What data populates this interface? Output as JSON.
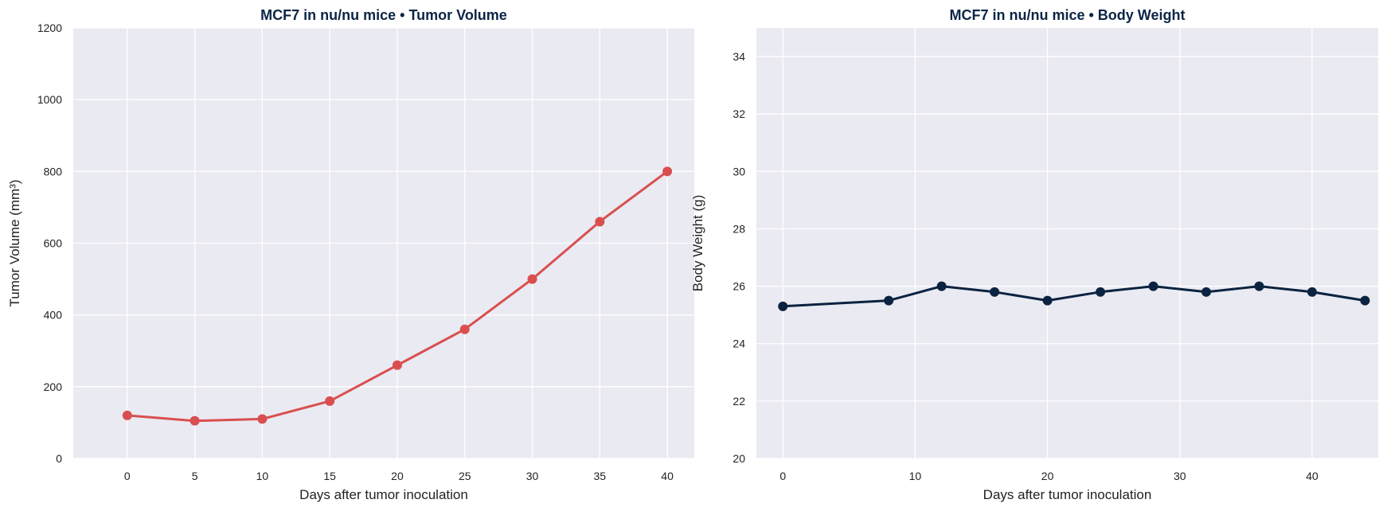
{
  "chart_data": [
    {
      "type": "line",
      "title": "MCF7 in nu/nu mice  •  Tumor Volume",
      "xlabel": "Days after tumor inoculation",
      "ylabel": "Tumor Volume (mm³)",
      "xlim": [
        -4,
        42
      ],
      "ylim": [
        0,
        1200
      ],
      "xticks": [
        0,
        5,
        10,
        15,
        20,
        25,
        30,
        35,
        40
      ],
      "yticks": [
        0,
        200,
        400,
        600,
        800,
        1000,
        1200
      ],
      "grid": true,
      "color": "#d94f4f",
      "x": [
        0,
        5,
        10,
        15,
        20,
        25,
        30,
        35,
        40
      ],
      "y": [
        120,
        105,
        110,
        160,
        260,
        360,
        500,
        660,
        800
      ]
    },
    {
      "type": "line",
      "title": "MCF7 in nu/nu mice  •  Body Weight",
      "xlabel": "Days after tumor inoculation",
      "ylabel": "Body Weight (g)",
      "xlim": [
        -2,
        45
      ],
      "ylim": [
        20,
        35
      ],
      "xticks": [
        0,
        10,
        20,
        30,
        40
      ],
      "yticks": [
        20,
        22,
        24,
        26,
        28,
        30,
        32,
        34
      ],
      "grid": true,
      "color": "#0b2340",
      "x": [
        0,
        8,
        12,
        16,
        20,
        24,
        28,
        32,
        36,
        40,
        44
      ],
      "y": [
        25.3,
        25.5,
        26.0,
        25.8,
        25.5,
        25.8,
        26.0,
        25.8,
        26.0,
        25.8,
        25.5
      ]
    }
  ]
}
